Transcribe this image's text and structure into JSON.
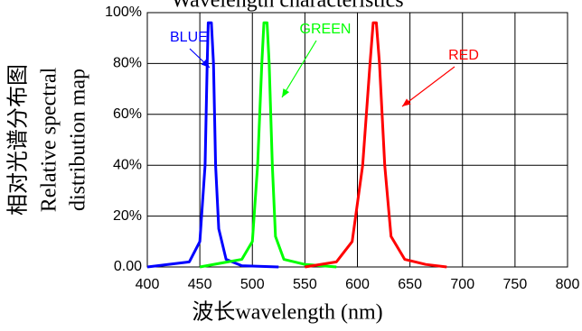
{
  "chart_data": {
    "type": "line",
    "title": "Wavelength characteristics",
    "y_label_cn": "相对光谱分布图",
    "y_label": [
      "Relative spectral",
      "distribution map"
    ],
    "x_label": "波长wavelength (nm)",
    "xlim": [
      400,
      800
    ],
    "xticks": [
      400,
      450,
      500,
      550,
      600,
      650,
      700,
      750,
      800
    ],
    "ylim": [
      0,
      100
    ],
    "yticks": [
      {
        "value": 0,
        "label": "0.00"
      },
      {
        "value": 20,
        "label": "20%"
      },
      {
        "value": 40,
        "label": "40%"
      },
      {
        "value": 60,
        "label": "60%"
      },
      {
        "value": 80,
        "label": "80%"
      },
      {
        "value": 100,
        "label": "100%"
      }
    ],
    "grid": true,
    "series": [
      {
        "name": "BLUE",
        "color": "#0000ff",
        "x": [
          400,
          440,
          450,
          455,
          457,
          458,
          461,
          463,
          465,
          468,
          475,
          490,
          525
        ],
        "values": [
          0,
          2,
          10,
          40,
          80,
          96,
          96,
          80,
          40,
          15,
          3,
          0.5,
          0
        ]
      },
      {
        "name": "GREEN",
        "color": "#00ff00",
        "x": [
          450,
          490,
          500,
          505,
          509,
          511,
          514,
          516,
          519,
          522,
          530,
          550,
          580
        ],
        "values": [
          0,
          3,
          10,
          40,
          80,
          96,
          96,
          80,
          40,
          12,
          3,
          1,
          0
        ]
      },
      {
        "name": "RED",
        "color": "#ff0000",
        "x": [
          550,
          580,
          595,
          605,
          612,
          615,
          618,
          621,
          626,
          632,
          645,
          665,
          685
        ],
        "values": [
          0,
          2,
          10,
          40,
          80,
          96,
          96,
          80,
          40,
          12,
          3,
          1,
          0
        ]
      }
    ]
  }
}
